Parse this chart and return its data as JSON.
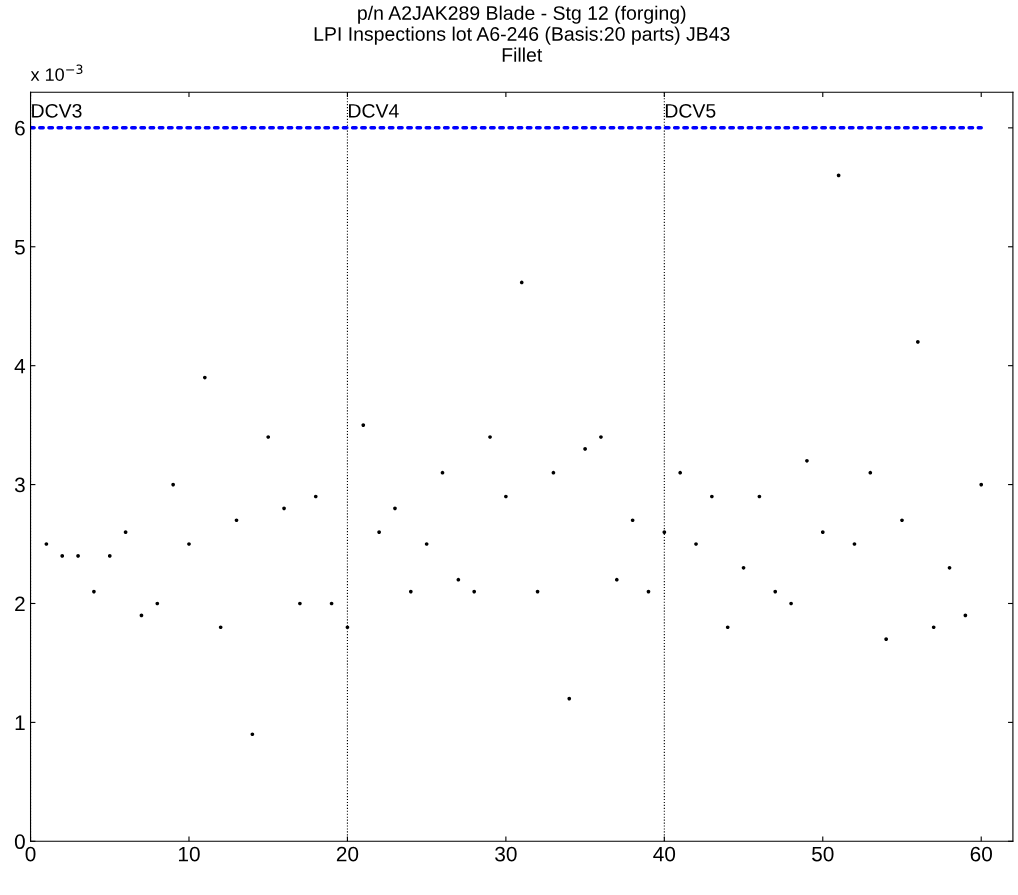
{
  "chart_data": {
    "type": "scatter",
    "title": "p/n A2JAK289 Blade - Stg 12 (forging)\nLPI Inspections lot A6-246 (Basis:20 parts) JB43\nFillet",
    "annotations": [
      "x 10$^{−3}$"
    ],
    "xlim": [
      0,
      62
    ],
    "xticks": [
      0,
      10,
      20,
      30,
      40,
      50,
      60
    ],
    "ylim": [
      0,
      6.3
    ],
    "yticks": [
      0,
      1,
      2,
      3,
      4,
      5,
      6
    ],
    "grid": false,
    "series": [
      {
        "color": "#000000",
        "marker": "circle",
        "x": [
          1,
          2,
          3,
          4,
          5,
          6,
          7,
          8,
          9,
          10,
          11,
          12,
          13,
          14,
          15,
          16,
          17,
          18,
          19,
          20,
          21,
          22,
          23,
          24,
          25,
          26,
          27,
          28,
          29,
          30,
          31,
          32,
          33,
          34,
          35,
          36,
          37,
          38,
          39,
          40,
          41,
          42,
          43,
          44,
          45,
          46,
          47,
          48,
          49,
          50,
          51,
          52,
          53,
          54,
          55,
          56,
          57,
          58,
          59,
          60
        ],
        "values": [
          2.5,
          2.4,
          2.4,
          2.1,
          2.4,
          2.6,
          1.9,
          2.0,
          3.0,
          2.5,
          3.9,
          1.8,
          2.7,
          0.9,
          3.4,
          2.8,
          2.0,
          2.9,
          2.0,
          1.8,
          3.5,
          2.6,
          2.8,
          2.1,
          2.5,
          3.1,
          2.2,
          2.1,
          3.4,
          2.9,
          4.7,
          2.1,
          3.1,
          1.2,
          3.3,
          3.4,
          2.2,
          2.7,
          2.1,
          2.6,
          3.1,
          2.5,
          2.9,
          1.8,
          2.3,
          2.9,
          2.1,
          2.0,
          3.2,
          2.6,
          5.6,
          2.5,
          3.1,
          1.7,
          2.7,
          4.2,
          1.8,
          2.3,
          1.9,
          3.0
        ]
      },
      {
        "type": "line",
        "color": "#0000ff",
        "line_style": "dotted",
        "marker": "none",
        "x": [
          0,
          60
        ],
        "values": [
          6,
          6
        ]
      }
    ],
    "ref_lines": [
      {
        "axis": "x",
        "value": 0,
        "label": "DCV3",
        "color": "#000000",
        "line_style": "dotted"
      },
      {
        "axis": "x",
        "value": 20,
        "label": "DCV4",
        "color": "#000000",
        "line_style": "dotted"
      },
      {
        "axis": "x",
        "value": 40,
        "label": "DCV5",
        "color": "#000000",
        "line_style": "dotted"
      }
    ]
  }
}
